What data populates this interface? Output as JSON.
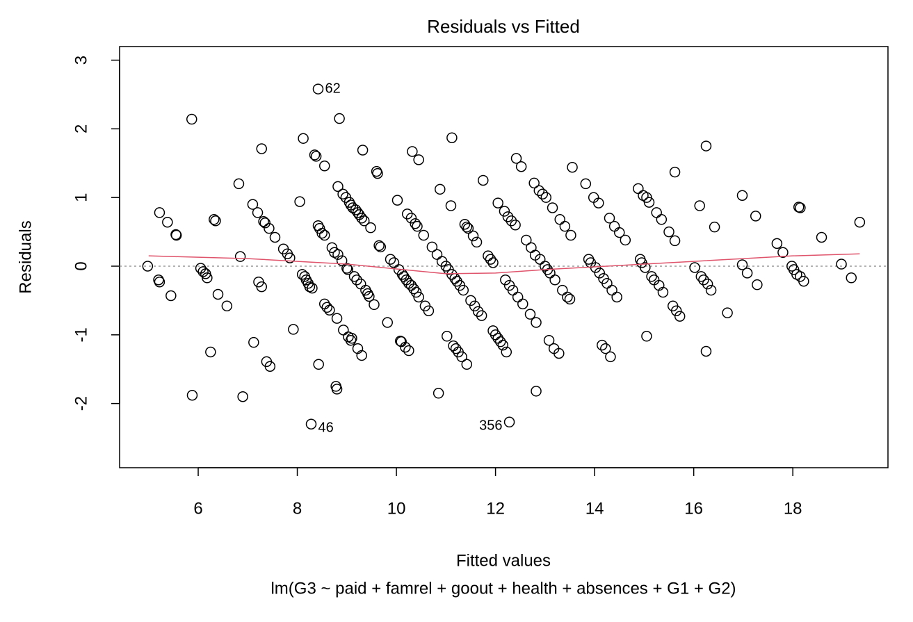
{
  "chart_data": {
    "type": "scatter",
    "title": "Residuals vs Fitted",
    "xlabel": "Fitted values",
    "subtitle": "lm(G3 ~ paid + famrel + goout + health + absences + G1 + G2)",
    "ylabel": "Residuals",
    "color": "#000000",
    "x": [
      4.98,
      5.2,
      5.22,
      5.22,
      5.38,
      5.45,
      5.55,
      5.56,
      5.87,
      5.88,
      6.05,
      6.1,
      6.15,
      6.18,
      6.25,
      6.32,
      6.35,
      6.4,
      6.58,
      6.82,
      6.85,
      6.9,
      7.1,
      7.12,
      7.2,
      7.22,
      7.28,
      7.28,
      7.32,
      7.35,
      7.38,
      7.43,
      7.45,
      7.55,
      7.72,
      7.8,
      7.85,
      7.92,
      8.05,
      8.1,
      8.12,
      8.15,
      8.18,
      8.22,
      8.25,
      8.28,
      8.3,
      8.35,
      8.38,
      8.42,
      8.42,
      8.43,
      8.45,
      8.5,
      8.55,
      8.55,
      8.55,
      8.6,
      8.65,
      8.7,
      8.75,
      8.78,
      8.8,
      8.82,
      8.82,
      8.8,
      8.85,
      8.9,
      8.92,
      8.93,
      8.98,
      9.0,
      9.02,
      9.03,
      9.05,
      9.08,
      9.08,
      9.1,
      9.12,
      9.15,
      9.18,
      9.2,
      9.22,
      9.22,
      9.25,
      9.28,
      9.3,
      9.3,
      9.32,
      9.35,
      9.38,
      9.42,
      9.45,
      9.48,
      9.55,
      9.6,
      9.62,
      9.65,
      9.68,
      9.82,
      9.88,
      9.95,
      10.02,
      10.05,
      10.08,
      10.1,
      10.12,
      10.15,
      10.18,
      10.2,
      10.22,
      10.25,
      10.25,
      10.3,
      10.3,
      10.32,
      10.35,
      10.38,
      10.4,
      10.42,
      10.45,
      10.45,
      10.55,
      10.58,
      10.65,
      10.72,
      10.82,
      10.85,
      10.88,
      10.92,
      11.02,
      11.0,
      11.05,
      11.1,
      11.12,
      11.12,
      11.15,
      11.18,
      11.2,
      11.22,
      11.25,
      11.28,
      11.32,
      11.35,
      11.38,
      11.42,
      11.42,
      11.45,
      11.5,
      11.55,
      11.58,
      11.62,
      11.65,
      11.72,
      11.75,
      11.85,
      11.9,
      11.95,
      11.95,
      12.0,
      12.05,
      12.05,
      12.1,
      12.15,
      12.18,
      12.2,
      12.22,
      12.25,
      12.28,
      12.28,
      12.32,
      12.35,
      12.4,
      12.42,
      12.45,
      12.52,
      12.55,
      12.62,
      12.7,
      12.72,
      12.78,
      12.8,
      12.82,
      12.82,
      12.88,
      12.9,
      12.95,
      13.0,
      13.02,
      13.05,
      13.08,
      13.1,
      13.15,
      13.18,
      13.2,
      13.28,
      13.3,
      13.35,
      13.4,
      13.45,
      13.5,
      13.52,
      13.55,
      13.82,
      13.88,
      13.92,
      13.98,
      14.02,
      14.08,
      14.1,
      14.15,
      14.18,
      14.22,
      14.25,
      14.3,
      14.32,
      14.35,
      14.4,
      14.45,
      14.5,
      14.62,
      14.88,
      14.92,
      14.95,
      14.98,
      15.02,
      15.05,
      15.05,
      15.1,
      15.15,
      15.2,
      15.25,
      15.3,
      15.35,
      15.38,
      15.5,
      15.58,
      15.62,
      15.62,
      15.65,
      15.72,
      16.02,
      16.12,
      16.15,
      16.2,
      16.25,
      16.25,
      16.28,
      16.35,
      16.42,
      16.68,
      16.98,
      16.98,
      17.08,
      17.25,
      17.28,
      17.68,
      17.8,
      17.98,
      18.02,
      18.08,
      18.12,
      18.15,
      18.15,
      18.22,
      18.58,
      18.98,
      19.18,
      19.35
    ],
    "y": [
      0.0,
      -0.2,
      -0.23,
      0.78,
      0.64,
      -0.43,
      0.46,
      0.45,
      2.14,
      -1.88,
      -0.03,
      -0.08,
      -0.11,
      -0.17,
      -1.25,
      0.68,
      0.66,
      -0.41,
      -0.58,
      1.2,
      0.14,
      -1.9,
      0.9,
      -1.11,
      0.78,
      -0.23,
      1.71,
      -0.3,
      0.65,
      0.63,
      -1.39,
      0.55,
      -1.46,
      0.42,
      0.25,
      0.18,
      0.12,
      -0.92,
      0.94,
      -0.12,
      1.86,
      -0.15,
      -0.2,
      -0.25,
      -0.3,
      -2.3,
      -0.32,
      1.62,
      1.6,
      2.58,
      0.59,
      -1.43,
      0.55,
      0.48,
      1.46,
      0.45,
      -0.55,
      -0.6,
      -0.64,
      0.27,
      0.2,
      -1.75,
      -1.79,
      1.16,
      0.17,
      -0.76,
      2.15,
      0.08,
      1.05,
      -0.93,
      1.0,
      -0.03,
      -0.05,
      -1.03,
      0.93,
      -1.08,
      0.89,
      -1.05,
      0.85,
      -0.15,
      0.82,
      -0.2,
      0.78,
      -1.2,
      0.75,
      -0.26,
      0.7,
      -1.3,
      1.69,
      0.66,
      -0.35,
      -0.4,
      -0.44,
      0.56,
      -0.56,
      1.38,
      1.35,
      0.3,
      0.28,
      -0.82,
      0.1,
      0.05,
      0.96,
      -0.05,
      -1.09,
      -1.1,
      -0.12,
      -0.15,
      -1.18,
      -0.2,
      0.76,
      -1.23,
      -0.25,
      0.7,
      -0.28,
      1.67,
      -0.33,
      0.62,
      -0.38,
      0.58,
      1.55,
      -0.45,
      0.45,
      -0.58,
      -0.65,
      0.28,
      0.17,
      -1.85,
      1.12,
      0.07,
      -1.02,
      0.0,
      -0.05,
      0.88,
      1.87,
      -0.12,
      -1.16,
      -0.18,
      -1.2,
      -0.22,
      -1.25,
      -0.28,
      -1.32,
      -0.35,
      0.61,
      -1.43,
      0.57,
      0.55,
      -0.5,
      0.44,
      -0.58,
      0.35,
      -0.66,
      -0.72,
      1.25,
      0.15,
      0.1,
      0.05,
      -0.94,
      -1.0,
      -1.05,
      0.92,
      -1.1,
      -1.15,
      0.8,
      -0.2,
      -1.25,
      0.72,
      -2.27,
      -0.28,
      0.66,
      -0.35,
      0.6,
      1.57,
      -0.45,
      1.45,
      -0.55,
      0.38,
      -0.7,
      0.27,
      1.21,
      0.16,
      -1.82,
      -0.82,
      1.1,
      0.1,
      1.05,
      0.0,
      1.0,
      -0.05,
      -1.08,
      -0.1,
      0.85,
      -1.2,
      -0.2,
      -1.27,
      0.68,
      -0.35,
      0.58,
      -0.45,
      -0.48,
      0.45,
      1.44,
      1.2,
      0.1,
      0.05,
      1.0,
      -0.02,
      0.92,
      -0.1,
      -1.15,
      -0.18,
      -1.2,
      -0.25,
      0.7,
      -1.32,
      -0.35,
      0.58,
      -0.45,
      0.49,
      0.38,
      1.13,
      0.1,
      0.05,
      1.03,
      -0.02,
      1.0,
      -1.02,
      0.93,
      -0.15,
      -0.2,
      0.78,
      -0.28,
      0.68,
      -0.38,
      0.5,
      -0.58,
      1.37,
      0.37,
      -0.65,
      -0.73,
      -0.02,
      0.88,
      -0.15,
      -0.2,
      1.75,
      -1.24,
      -0.26,
      -0.35,
      0.57,
      -0.68,
      1.03,
      0.02,
      -0.1,
      0.73,
      -0.27,
      0.33,
      0.2,
      0.0,
      -0.05,
      -0.12,
      0.86,
      0.85,
      -0.15,
      -0.22,
      0.42,
      0.03,
      -0.17,
      0.64
    ],
    "smooth": {
      "color": "#DF536B",
      "x": [
        5.0,
        6,
        7,
        8,
        9,
        10,
        11,
        12,
        13,
        14,
        15,
        16,
        17,
        18,
        19.35
      ],
      "y": [
        0.15,
        0.13,
        0.11,
        0.07,
        0.03,
        -0.04,
        -0.11,
        -0.1,
        -0.05,
        -0.01,
        0.03,
        0.07,
        0.11,
        0.15,
        0.18
      ]
    },
    "reference_line": {
      "y": 0,
      "color": "#999999"
    },
    "annotations": [
      {
        "text": "62",
        "x": 8.42,
        "y": 2.58
      },
      {
        "text": "46",
        "x": 8.28,
        "y": -2.3
      },
      {
        "text": "356",
        "x": 12.28,
        "y": -2.27
      }
    ],
    "xlim": [
      4.414,
      19.92
    ],
    "ylim": [
      -2.935,
      3.198
    ],
    "xticks": [
      6,
      8,
      10,
      12,
      14,
      16,
      18
    ],
    "yticks": [
      -2,
      -1,
      0,
      1,
      2,
      3
    ]
  }
}
